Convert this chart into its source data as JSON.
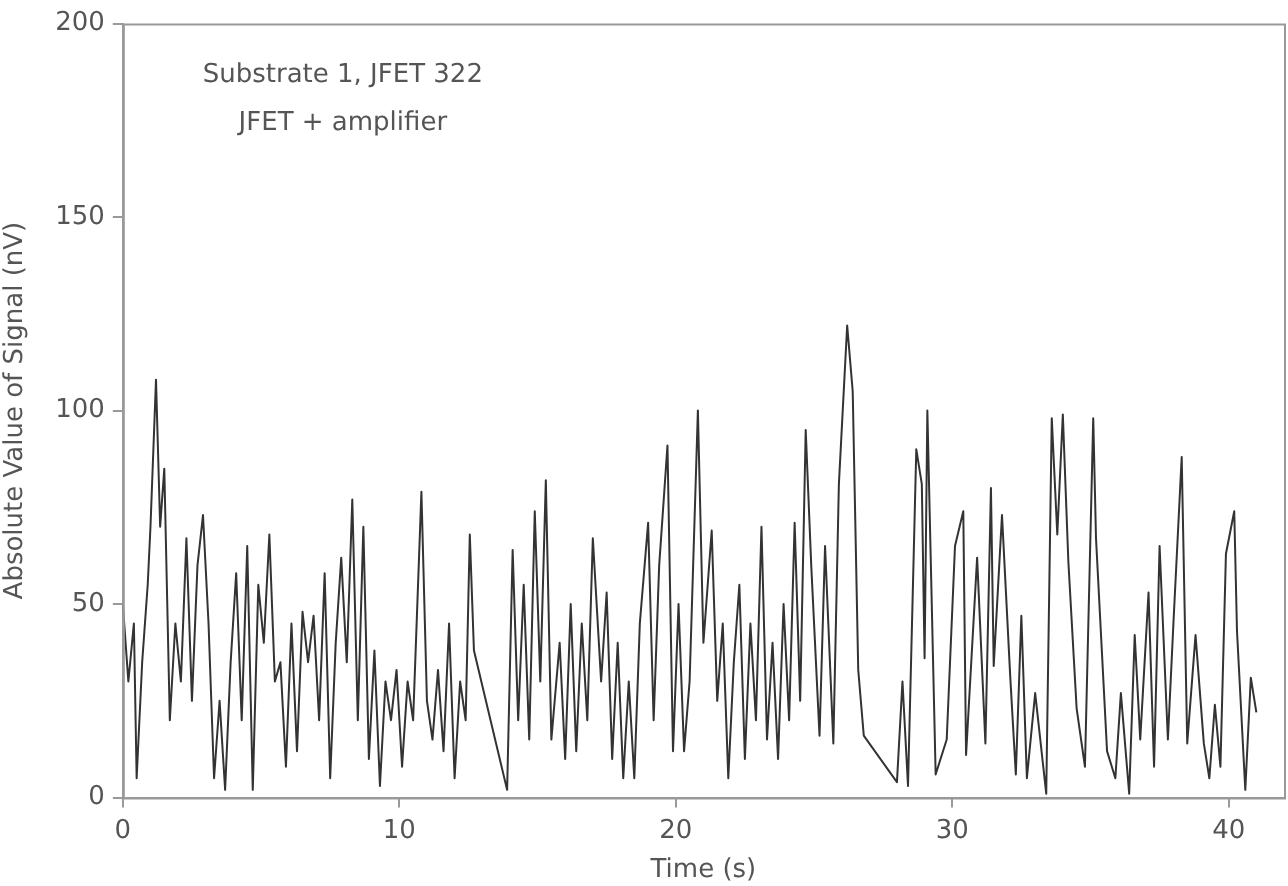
{
  "chart_data": {
    "type": "line",
    "xlabel": "Time (s)",
    "ylabel": "Absolute Value of Signal (nV)",
    "annotations": [
      "Substrate 1, JFET 322",
      "JFET + amplifier"
    ],
    "xlim": [
      0,
      42
    ],
    "xticks": [
      0,
      10,
      20,
      30,
      40
    ],
    "ylim": [
      0,
      200
    ],
    "yticks": [
      0,
      50,
      100,
      150,
      200
    ],
    "grid": false,
    "legend": false,
    "marker": "none",
    "line_style": "solid",
    "series": [
      {
        "color": "#333333",
        "x": [
          0,
          0.2,
          0.4,
          0.5,
          0.7,
          0.9,
          1.0,
          1.2,
          1.35,
          1.5,
          1.7,
          1.9,
          2.1,
          2.3,
          2.5,
          2.7,
          2.9,
          3.1,
          3.3,
          3.5,
          3.7,
          3.9,
          4.1,
          4.3,
          4.5,
          4.7,
          4.9,
          5.1,
          5.3,
          5.5,
          5.7,
          5.9,
          6.1,
          6.3,
          6.5,
          6.7,
          6.9,
          7.1,
          7.3,
          7.5,
          7.7,
          7.9,
          8.1,
          8.3,
          8.5,
          8.7,
          8.9,
          9.1,
          9.3,
          9.5,
          9.7,
          9.9,
          10.1,
          10.3,
          10.5,
          10.8,
          11.0,
          11.2,
          11.4,
          11.6,
          11.8,
          12.0,
          12.2,
          12.4,
          12.55,
          12.7,
          13.9,
          14.1,
          14.3,
          14.5,
          14.7,
          14.9,
          15.1,
          15.3,
          15.5,
          15.8,
          16.0,
          16.2,
          16.4,
          16.6,
          16.8,
          17.0,
          17.3,
          17.5,
          17.7,
          17.9,
          18.1,
          18.3,
          18.5,
          18.7,
          19.0,
          19.2,
          19.4,
          19.7,
          19.9,
          20.1,
          20.3,
          20.5,
          20.8,
          21.0,
          21.3,
          21.5,
          21.7,
          21.9,
          22.1,
          22.3,
          22.5,
          22.7,
          22.9,
          23.1,
          23.3,
          23.5,
          23.7,
          23.9,
          24.1,
          24.3,
          24.5,
          24.7,
          24.9,
          25.2,
          25.4,
          25.7,
          25.9,
          26.2,
          26.4,
          26.6,
          26.8,
          28.0,
          28.2,
          28.4,
          28.7,
          28.9,
          29.0,
          29.1,
          29.4,
          29.8,
          30.1,
          30.4,
          30.5,
          30.9,
          31.2,
          31.4,
          31.5,
          31.8,
          32.1,
          32.3,
          32.5,
          32.7,
          33.0,
          33.4,
          33.6,
          33.8,
          34.0,
          34.2,
          34.5,
          34.8,
          35.1,
          35.2,
          35.6,
          35.9,
          36.1,
          36.4,
          36.6,
          36.8,
          37.1,
          37.3,
          37.5,
          37.8,
          38.0,
          38.3,
          38.5,
          38.8,
          39.1,
          39.3,
          39.5,
          39.7,
          39.9,
          40.2,
          40.3,
          40.6,
          40.8,
          41.0
        ],
        "values": [
          50,
          30,
          45,
          5,
          35,
          55,
          70,
          108,
          70,
          85,
          20,
          45,
          30,
          67,
          25,
          60,
          73,
          45,
          5,
          25,
          2,
          35,
          58,
          20,
          65,
          2,
          55,
          40,
          68,
          30,
          35,
          8,
          45,
          12,
          48,
          35,
          47,
          20,
          58,
          5,
          40,
          62,
          35,
          77,
          20,
          70,
          10,
          38,
          3,
          30,
          20,
          33,
          8,
          30,
          20,
          79,
          25,
          15,
          33,
          12,
          45,
          5,
          30,
          20,
          68,
          38,
          2,
          64,
          20,
          55,
          15,
          74,
          30,
          82,
          15,
          40,
          10,
          50,
          12,
          45,
          20,
          67,
          30,
          53,
          10,
          40,
          5,
          30,
          5,
          45,
          71,
          20,
          60,
          91,
          12,
          50,
          12,
          30,
          100,
          40,
          69,
          25,
          45,
          5,
          35,
          55,
          10,
          45,
          20,
          70,
          15,
          40,
          10,
          50,
          20,
          71,
          25,
          95,
          60,
          16,
          65,
          14,
          81,
          122,
          105,
          33,
          16,
          4,
          30,
          3,
          90,
          81,
          36,
          100,
          6,
          15,
          65,
          74,
          11,
          62,
          14,
          80,
          34,
          73,
          31,
          6,
          47,
          5,
          27,
          1,
          98,
          68,
          99,
          61,
          23,
          8,
          98,
          67,
          12,
          5,
          27,
          1,
          42,
          15,
          53,
          8,
          65,
          15,
          45,
          88,
          14,
          42,
          14,
          5,
          24,
          8,
          63,
          74,
          43,
          2,
          31,
          22
        ]
      }
    ]
  }
}
